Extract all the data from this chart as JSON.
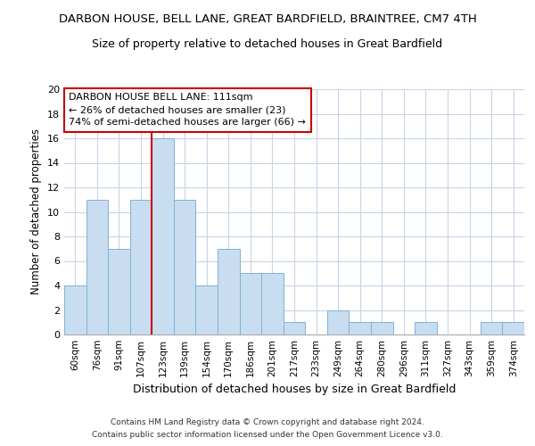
{
  "title": "DARBON HOUSE, BELL LANE, GREAT BARDFIELD, BRAINTREE, CM7 4TH",
  "subtitle": "Size of property relative to detached houses in Great Bardfield",
  "xlabel": "Distribution of detached houses by size in Great Bardfield",
  "ylabel": "Number of detached properties",
  "categories": [
    "60sqm",
    "76sqm",
    "91sqm",
    "107sqm",
    "123sqm",
    "139sqm",
    "154sqm",
    "170sqm",
    "186sqm",
    "201sqm",
    "217sqm",
    "233sqm",
    "249sqm",
    "264sqm",
    "280sqm",
    "296sqm",
    "311sqm",
    "327sqm",
    "343sqm",
    "359sqm",
    "374sqm"
  ],
  "values": [
    4,
    11,
    7,
    11,
    16,
    11,
    4,
    7,
    5,
    5,
    1,
    0,
    2,
    1,
    1,
    0,
    1,
    0,
    0,
    1,
    1
  ],
  "bar_color": "#c8ddf0",
  "bar_edge_color": "#7fb3d8",
  "ylim": [
    0,
    20
  ],
  "yticks": [
    0,
    2,
    4,
    6,
    8,
    10,
    12,
    14,
    16,
    18,
    20
  ],
  "property_line_color": "#cc0000",
  "annotation_line1": "DARBON HOUSE BELL LANE: 111sqm",
  "annotation_line2": "← 26% of detached houses are smaller (23)",
  "annotation_line3": "74% of semi-detached houses are larger (66) →",
  "annotation_box_color": "#cc0000",
  "footer_line1": "Contains HM Land Registry data © Crown copyright and database right 2024.",
  "footer_line2": "Contains public sector information licensed under the Open Government Licence v3.0.",
  "background_color": "#ffffff",
  "grid_color": "#c8d4e8"
}
